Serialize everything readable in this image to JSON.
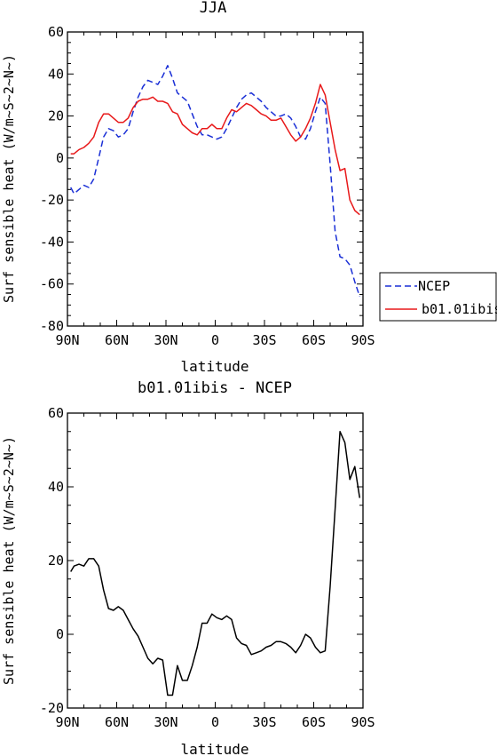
{
  "chart_data": [
    {
      "type": "line",
      "title": "JJA",
      "xlabel": "latitude",
      "ylabel": "Surf sensible heat (W/m~S~2~N~)",
      "xlim": [
        90,
        -90
      ],
      "ylim": [
        -80,
        60
      ],
      "xticks": [
        90,
        60,
        30,
        0,
        -30,
        -60,
        -90
      ],
      "xtick_labels": [
        "90N",
        "60N",
        "30N",
        "0",
        "30S",
        "60S",
        "90S"
      ],
      "yticks": [
        -80,
        -60,
        -40,
        -20,
        0,
        20,
        40,
        60
      ],
      "ytick_labels": [
        "-80",
        "-60",
        "-40",
        "-20",
        "0",
        "20",
        "40",
        "60"
      ],
      "legend_position": "right",
      "legend": [
        {
          "label": "NCEP",
          "color": "#1a2fd6",
          "dash": "dashed"
        },
        {
          "label": "b01.01ibis",
          "color": "#e8191a",
          "dash": "solid"
        }
      ],
      "series": [
        {
          "name": "NCEP",
          "color": "#1a2fd6",
          "dash": "dashed",
          "x": [
            88,
            86,
            83,
            80,
            77,
            74,
            71,
            68,
            65,
            62,
            59,
            56,
            53,
            50,
            47,
            44,
            41,
            38,
            35,
            32,
            29,
            26,
            23,
            20,
            17,
            14,
            11,
            8,
            5,
            2,
            -1,
            -4,
            -7,
            -10,
            -13,
            -16,
            -19,
            -22,
            -25,
            -28,
            -31,
            -34,
            -37,
            -40,
            -43,
            -46,
            -49,
            -52,
            -55,
            -58,
            -61,
            -64,
            -67,
            -70,
            -73,
            -76,
            -79,
            -82,
            -85,
            -88
          ],
          "y": [
            -14,
            -17,
            -15,
            -13,
            -14,
            -10,
            0,
            10,
            14,
            13,
            10,
            11,
            14,
            22,
            29,
            34,
            37,
            36,
            35,
            39,
            44,
            38,
            31,
            29,
            27,
            21,
            15,
            11,
            11,
            10,
            9,
            10,
            14,
            19,
            24,
            28,
            30,
            31,
            29,
            27,
            24,
            22,
            20,
            20,
            21,
            19,
            15,
            10,
            9,
            14,
            22,
            29,
            26,
            -3,
            -35,
            -47,
            -48,
            -51,
            -59,
            -66
          ]
        },
        {
          "name": "b01.01ibis",
          "color": "#e8191a",
          "dash": "solid",
          "x": [
            88,
            86,
            83,
            80,
            77,
            74,
            71,
            68,
            65,
            62,
            59,
            56,
            53,
            50,
            47,
            44,
            41,
            38,
            35,
            32,
            29,
            26,
            23,
            20,
            17,
            14,
            11,
            8,
            5,
            2,
            -1,
            -4,
            -7,
            -10,
            -13,
            -16,
            -19,
            -22,
            -25,
            -28,
            -31,
            -34,
            -37,
            -40,
            -43,
            -46,
            -49,
            -52,
            -55,
            -58,
            -61,
            -64,
            -67,
            -70,
            -73,
            -76,
            -79,
            -82,
            -85,
            -88
          ],
          "y": [
            2,
            2,
            4,
            5,
            7,
            10,
            17,
            21,
            21,
            19,
            17,
            17,
            19,
            24,
            27,
            28,
            28,
            29,
            27,
            27,
            26,
            22,
            21,
            16,
            14,
            12,
            11,
            14,
            14,
            16,
            14,
            14,
            19,
            23,
            22,
            24,
            26,
            25,
            23,
            21,
            20,
            18,
            18,
            19,
            15,
            11,
            8,
            10,
            14,
            19,
            26,
            35,
            30,
            17,
            4,
            -6,
            -5,
            -20,
            -25,
            -27
          ]
        }
      ]
    },
    {
      "type": "line",
      "title": "b01.01ibis - NCEP",
      "xlabel": "latitude",
      "ylabel": "Surf sensible heat (W/m~S~2~N~)",
      "xlim": [
        90,
        -90
      ],
      "ylim": [
        -20,
        60
      ],
      "xticks": [
        90,
        60,
        30,
        0,
        -30,
        -60,
        -90
      ],
      "xtick_labels": [
        "90N",
        "60N",
        "30N",
        "0",
        "30S",
        "60S",
        "90S"
      ],
      "yticks": [
        -20,
        0,
        20,
        40,
        60
      ],
      "ytick_labels": [
        "-20",
        "0",
        "20",
        "40",
        "60"
      ],
      "series": [
        {
          "color": "#000000",
          "dash": "solid",
          "x": [
            88,
            86,
            83,
            80,
            77,
            74,
            71,
            68,
            65,
            62,
            59,
            56,
            53,
            50,
            47,
            44,
            41,
            38,
            35,
            32,
            29,
            26,
            23,
            20,
            17,
            14,
            11,
            8,
            5,
            2,
            -1,
            -4,
            -7,
            -10,
            -13,
            -16,
            -19,
            -22,
            -25,
            -28,
            -31,
            -34,
            -37,
            -40,
            -43,
            -46,
            -49,
            -52,
            -55,
            -58,
            -61,
            -64,
            -67,
            -70,
            -73,
            -76,
            -79,
            -82,
            -85,
            -88
          ],
          "y": [
            17,
            18.5,
            19,
            18.5,
            20.5,
            20.5,
            18.5,
            12,
            7,
            6.5,
            7.5,
            6.5,
            4,
            1.5,
            -0.5,
            -3.5,
            -6.5,
            -8,
            -6.5,
            -7,
            -16.5,
            -16.5,
            -8.5,
            -12.5,
            -12.5,
            -8.5,
            -3.5,
            3,
            3,
            5.5,
            4.5,
            4,
            5,
            4,
            -1,
            -2.5,
            -3,
            -5.5,
            -5,
            -4.5,
            -3.5,
            -3,
            -2,
            -2,
            -2.5,
            -3.5,
            -5,
            -3,
            0,
            -1,
            -3.5,
            -5,
            -4.5,
            13,
            34,
            55,
            52,
            42,
            45.5,
            37
          ]
        }
      ]
    }
  ]
}
